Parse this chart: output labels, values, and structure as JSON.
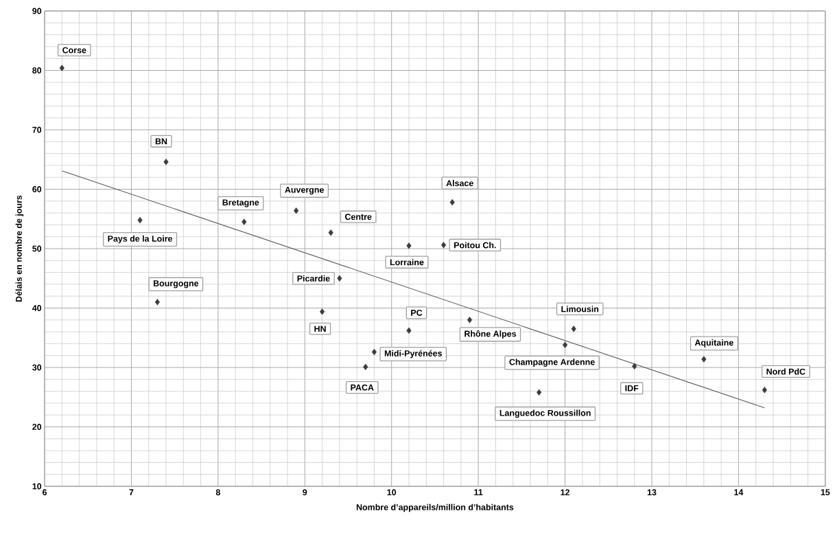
{
  "chart_data": {
    "type": "scatter",
    "xlabel": "Nombre d’appareils/million d’habitants",
    "ylabel": "Délais en nombre de jours",
    "xlim": [
      6,
      15
    ],
    "ylim": [
      10,
      90
    ],
    "xticks": [
      6,
      7,
      8,
      9,
      10,
      11,
      12,
      13,
      14,
      15
    ],
    "yticks": [
      10,
      20,
      30,
      40,
      50,
      60,
      70,
      80,
      90
    ],
    "grid": true,
    "marker": "diamond",
    "series": [
      {
        "color": "#3c3c3c",
        "x": [
          6.2,
          7.4,
          7.1,
          7.3,
          8.3,
          8.9,
          9.3,
          9.4,
          9.2,
          10.2,
          10.2,
          10.7,
          10.6,
          9.8,
          9.7,
          10.9,
          12.1,
          12.0,
          12.8,
          11.7,
          13.6,
          14.3
        ],
        "values": [
          80.4,
          64.6,
          54.8,
          41.0,
          54.5,
          56.4,
          52.7,
          45.0,
          39.4,
          50.5,
          36.2,
          57.8,
          50.6,
          32.6,
          30.1,
          38.0,
          36.5,
          33.8,
          30.2,
          25.8,
          31.4,
          26.2
        ]
      },
      {
        "type": "line",
        "color": "#5a5a5a",
        "marker": "none",
        "x": [
          6.2,
          14.3
        ],
        "values": [
          63.1,
          23.2
        ]
      }
    ],
    "annotations": [
      {
        "text": "Corse",
        "x": 6.2,
        "y": 80.4
      },
      {
        "text": "BN",
        "x": 7.4,
        "y": 64.6
      },
      {
        "text": "Pays de la Loire",
        "x": 7.1,
        "y": 54.8
      },
      {
        "text": "Bourgogne",
        "x": 7.3,
        "y": 41.0
      },
      {
        "text": "Bretagne",
        "x": 8.3,
        "y": 54.5
      },
      {
        "text": "Auvergne",
        "x": 8.9,
        "y": 56.4
      },
      {
        "text": "Centre",
        "x": 9.3,
        "y": 52.7
      },
      {
        "text": "Picardie",
        "x": 9.4,
        "y": 45.0
      },
      {
        "text": "HN",
        "x": 9.2,
        "y": 39.4
      },
      {
        "text": "Lorraine",
        "x": 10.2,
        "y": 50.5
      },
      {
        "text": "PC",
        "x": 10.2,
        "y": 36.2
      },
      {
        "text": "Alsace",
        "x": 10.7,
        "y": 57.8
      },
      {
        "text": "Poitou Ch.",
        "x": 10.6,
        "y": 50.6
      },
      {
        "text": "Midi-Pyrénées",
        "x": 9.8,
        "y": 32.6
      },
      {
        "text": "PACA",
        "x": 9.7,
        "y": 30.1
      },
      {
        "text": "Rhône Alpes",
        "x": 10.9,
        "y": 38.0
      },
      {
        "text": "Limousin",
        "x": 12.1,
        "y": 36.5
      },
      {
        "text": "Champagne Ardenne",
        "x": 12.0,
        "y": 33.8
      },
      {
        "text": "IDF",
        "x": 12.8,
        "y": 30.2
      },
      {
        "text": "Languedoc Roussillon",
        "x": 11.7,
        "y": 25.8
      },
      {
        "text": "Aquitaine",
        "x": 13.6,
        "y": 31.4
      },
      {
        "text": "Nord PdC",
        "x": 14.3,
        "y": 26.2
      }
    ]
  }
}
